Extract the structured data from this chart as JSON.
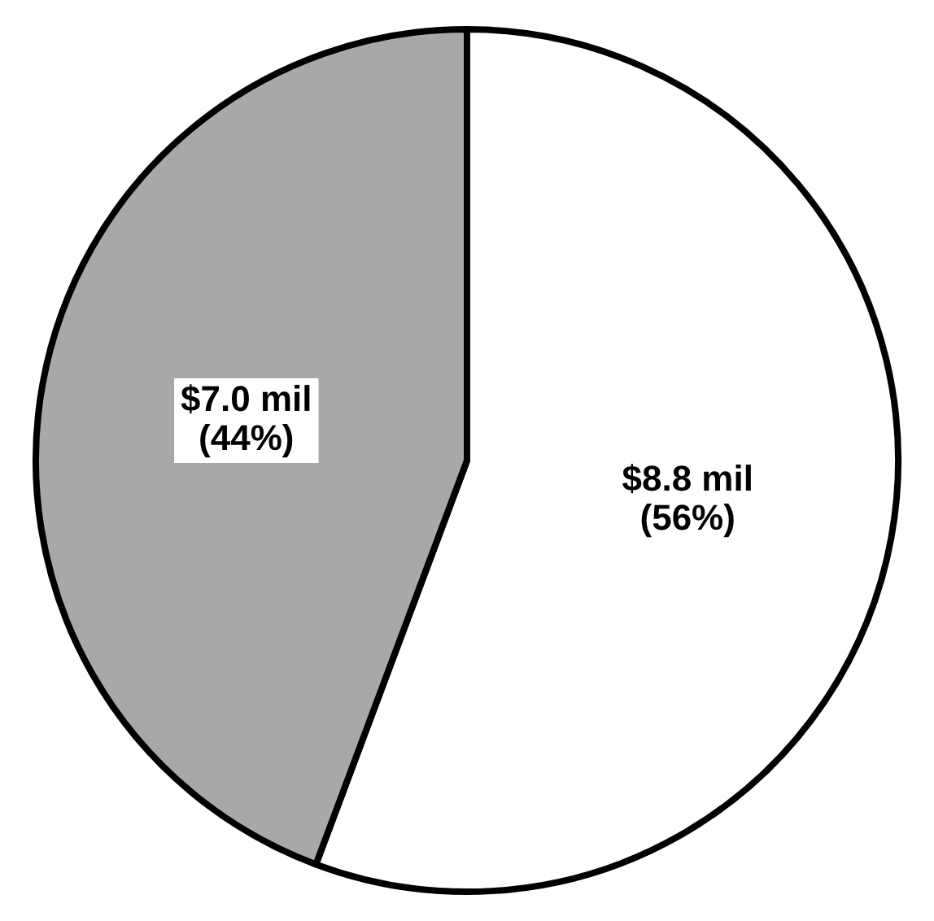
{
  "chart_data": {
    "type": "pie",
    "categories": [
      null,
      null
    ],
    "values": [
      8.8,
      7.0
    ],
    "colors": [
      "#ffffff",
      "#a8a8a8"
    ],
    "value_labels": [
      "$8.8 mil\n(56%)",
      "$7.0 mil\n(44%)"
    ],
    "legend": false
  }
}
